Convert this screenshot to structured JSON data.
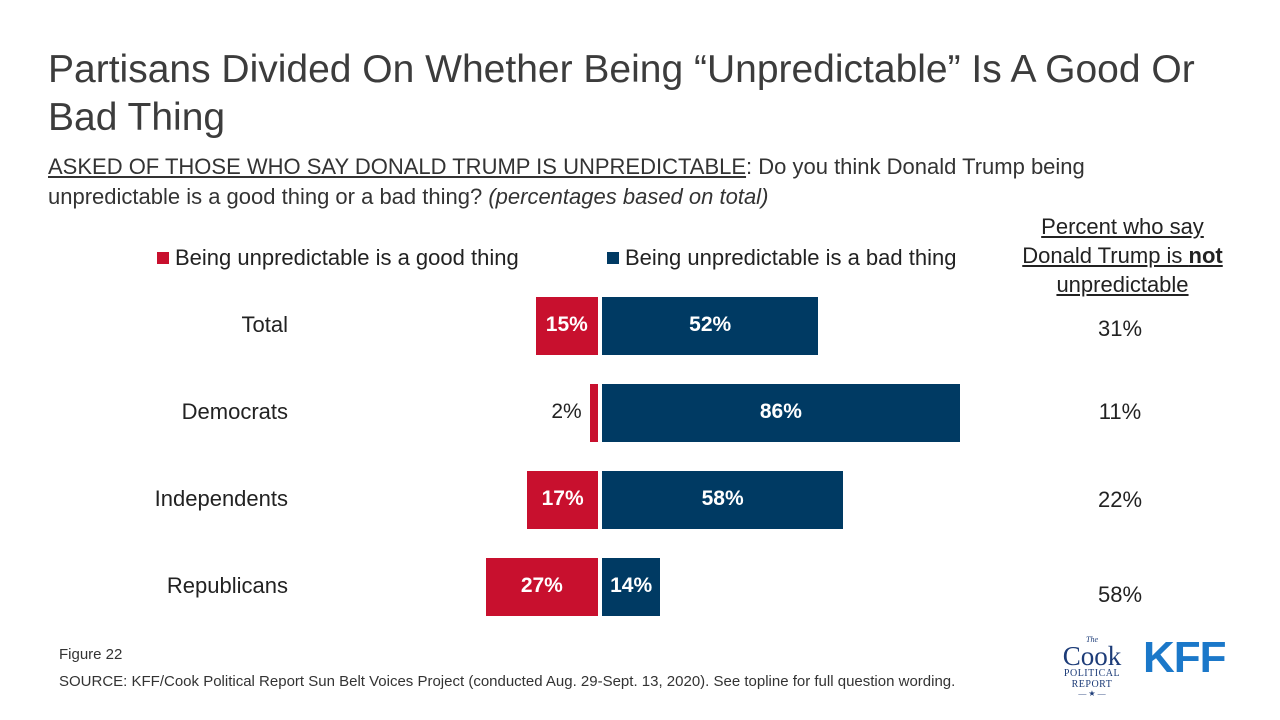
{
  "title": "Partisans Divided On Whether Being “Unpredictable” Is A Good Or Bad Thing",
  "subtitle": {
    "lead": "ASKED OF THOSE WHO SAY DONALD TRUMP IS UNPREDICTABLE",
    "question": ": Do you think Donald Trump being unpredictable is a good thing or a bad thing? ",
    "note": "(percentages based on total)"
  },
  "right_column": {
    "header_pre": "Percent who say Donald Trump is ",
    "header_bold": "not",
    "header_post": " unpredictable"
  },
  "colors": {
    "good": "#c8102e",
    "bad": "#003a63"
  },
  "chart_data": {
    "type": "bar",
    "orientation": "horizontal-diverging",
    "categories": [
      "Total",
      "Democrats",
      "Independents",
      "Republicans"
    ],
    "series": [
      {
        "name": "Being unpredictable is a good thing",
        "values": [
          15,
          2,
          17,
          27
        ],
        "labels": [
          "15%",
          "2%",
          "17%",
          "27%"
        ]
      },
      {
        "name": "Being unpredictable is a bad thing",
        "values": [
          52,
          86,
          58,
          14
        ],
        "labels": [
          "52%",
          "86%",
          "58%",
          "14%"
        ]
      }
    ],
    "not_unpredictable": [
      "31%",
      "11%",
      "22%",
      "58%"
    ],
    "legend_position": "top"
  },
  "footer": {
    "figure": "Figure 22",
    "source": "SOURCE: KFF/Cook Political Report Sun Belt Voices Project (conducted Aug. 29-Sept. 13, 2020). See topline for full question wording."
  },
  "logos": {
    "cook_the": "The",
    "cook_name": "Cook",
    "cook_line1": "POLITICAL",
    "cook_line2": "REPORT",
    "kff": "KFF"
  }
}
